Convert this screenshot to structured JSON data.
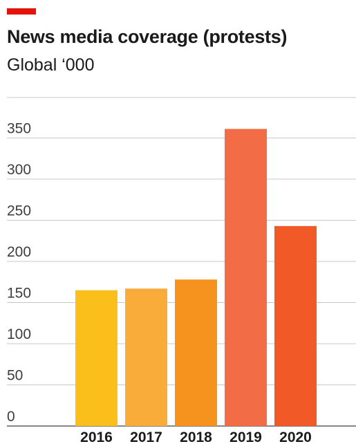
{
  "header": {
    "title": "News media coverage (protests)",
    "subtitle": "Global ‘000",
    "accent_color": "#e3120b"
  },
  "chart_data": {
    "type": "bar",
    "title": "News media coverage (protests)",
    "subtitle": "Global ‘000",
    "xlabel": "",
    "ylabel": "",
    "categories": [
      "2016",
      "2017",
      "2018",
      "2019",
      "2020"
    ],
    "values": [
      165,
      167,
      178,
      361,
      243
    ],
    "colors": [
      "#fbbf1c",
      "#f9ac3a",
      "#f6921e",
      "#f26d45",
      "#f15a26"
    ],
    "ylim": [
      0,
      400
    ],
    "yticks": [
      0,
      50,
      100,
      150,
      200,
      250,
      300,
      350
    ],
    "grid": true,
    "legend": "none"
  }
}
